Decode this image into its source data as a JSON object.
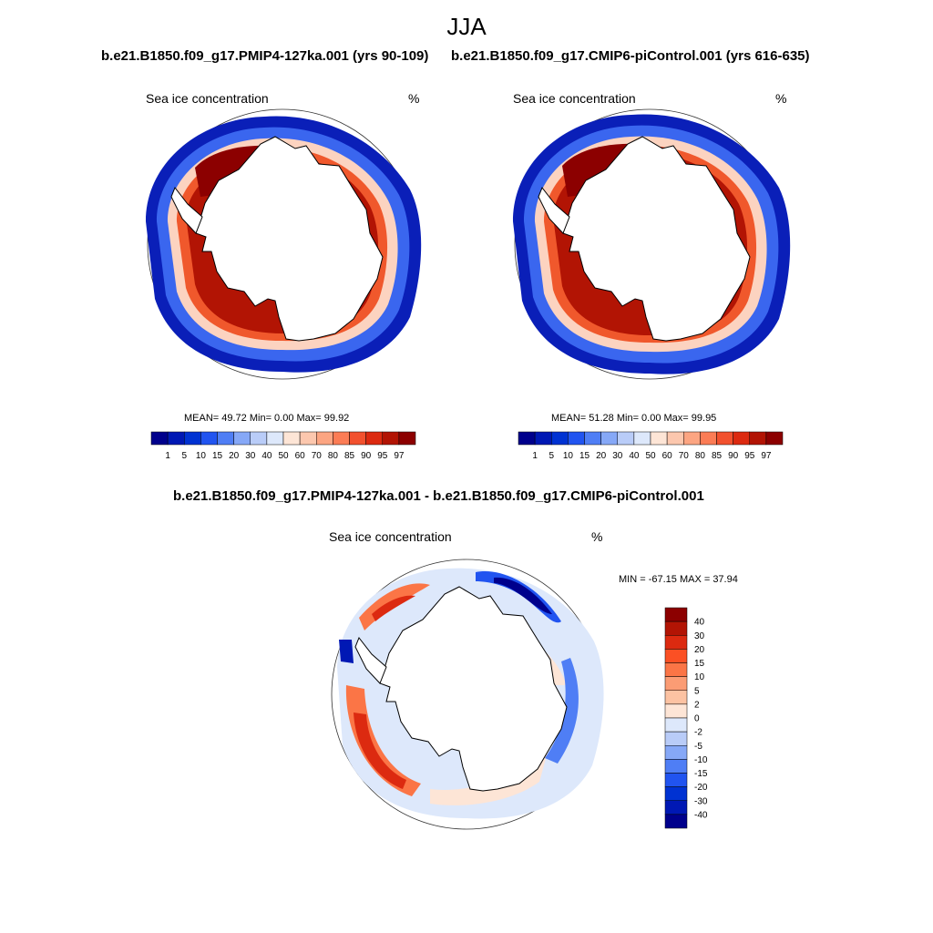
{
  "figure": {
    "title": "JJA"
  },
  "panels": [
    {
      "title": "b.e21.B1850.f09_g17.PMIP4-127ka.001 (yrs 90-109)",
      "variable": "Sea ice concentration",
      "units": "%",
      "stats": "MEAN=  49.72  Min=   0.00  Max=  99.92"
    },
    {
      "title": "b.e21.B1850.f09_g17.CMIP6-piControl.001 (yrs 616-635)",
      "variable": "Sea ice concentration",
      "units": "%",
      "stats": "MEAN=  51.28  Min=   0.00  Max=  99.95"
    },
    {
      "title": "b.e21.B1850.f09_g17.PMIP4-127ka.001 - b.e21.B1850.f09_g17.CMIP6-piControl.001",
      "variable": "Sea ice concentration",
      "units": "%",
      "stats": "MIN = -67.15 MAX =  37.94"
    }
  ],
  "colorbars": {
    "concentration": {
      "ticks": [
        "1",
        "5",
        "10",
        "15",
        "20",
        "30",
        "40",
        "50",
        "60",
        "70",
        "80",
        "85",
        "90",
        "95",
        "97"
      ],
      "colors": [
        "#00008c",
        "#0018b4",
        "#0032d2",
        "#2154f0",
        "#4f7ef5",
        "#86a8f7",
        "#b9ccf8",
        "#dde8fb",
        "#fde5d6",
        "#fcc7ae",
        "#fca582",
        "#fb7c55",
        "#f2512e",
        "#dc2a10",
        "#b21404",
        "#8c0000"
      ]
    },
    "difference": {
      "ticks": [
        "40",
        "30",
        "20",
        "15",
        "10",
        "5",
        "2",
        "0",
        "-2",
        "-5",
        "-10",
        "-15",
        "-20",
        "-30",
        "-40"
      ],
      "colors": [
        "#8c0000",
        "#b21404",
        "#dc2a10",
        "#fb5024",
        "#fb7546",
        "#fb9c74",
        "#fcc2a2",
        "#fde5d6",
        "#dde8fb",
        "#b9ccf8",
        "#86a8f7",
        "#4f7ef5",
        "#2154f0",
        "#0032d2",
        "#0018b4",
        "#00008c"
      ]
    }
  },
  "chart_data": {
    "type": "polar-map",
    "region": "Southern Ocean / Antarctica",
    "season": "JJA",
    "variable": "Sea ice concentration (%)",
    "maps": [
      {
        "case": "PMIP4-127ka",
        "mean": 49.72,
        "min": 0.0,
        "max": 99.92
      },
      {
        "case": "CMIP6-piControl",
        "mean": 51.28,
        "min": 0.0,
        "max": 99.95
      },
      {
        "case": "PMIP4-127ka minus CMIP6-piControl",
        "min": -67.15,
        "max": 37.94
      }
    ]
  }
}
